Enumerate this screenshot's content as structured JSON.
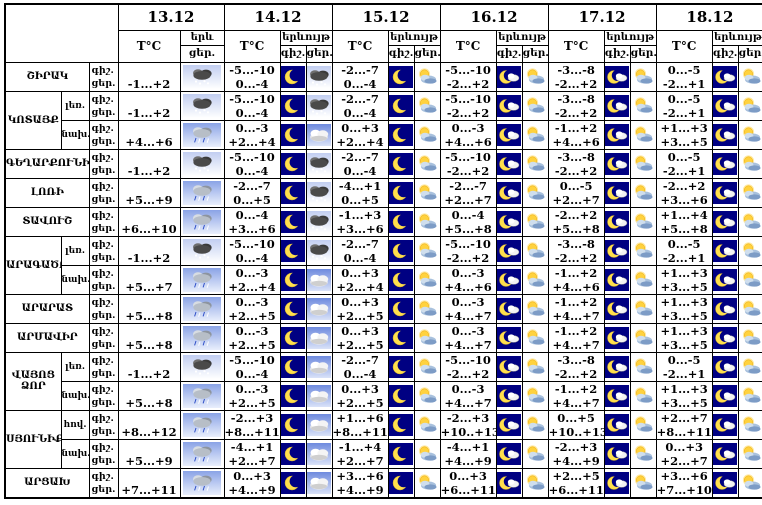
{
  "table": {
    "dates": [
      "13.12",
      "14.12",
      "15.12",
      "16.12",
      "17.12",
      "18.12"
    ],
    "headers": {
      "temp": "T°C",
      "phenomenon": "երևույթ",
      "phenomenon_short": "երև",
      "night": "գիշ.",
      "day": "ցեր."
    },
    "row_time_labels": {
      "night": "գիշ.",
      "day": "ցեր."
    },
    "icon_legend": {
      "moon": "clear night - yellow crescent moon on dark blue",
      "moon-cloud": "partly cloudy night - crescent moon with small cloud on dark blue",
      "snow-cloud": "dark storm cloud with snowfall",
      "rain-cloud": "grey cloud with rain on blue sky",
      "cloud": "overcast white cloud on blue sky",
      "sun-cloud": "partly cloudy day - sun behind blue-grey cloud"
    },
    "colors": {
      "night_bg": "#000082",
      "moon_yellow": "#ffdf4d",
      "border": "#000000",
      "page_bg": "#ffffff"
    },
    "rows": [
      {
        "region": "ՇԻՐԱԿ",
        "span": 1,
        "sub": null,
        "cells": [
          {
            "day": "-1...+2",
            "day_icon": "snow-cloud"
          },
          {
            "night": "-5...-10",
            "day": "0...-4",
            "night_icon": "moon",
            "day_icon": "snow-cloud"
          },
          {
            "night": "-2...-7",
            "day": "0...-4",
            "night_icon": "moon",
            "day_icon": "sun-cloud"
          },
          {
            "night": "-5...-10",
            "day": "-2...+2",
            "night_icon": "moon-cloud",
            "day_icon": "sun-cloud"
          },
          {
            "night": "-3...-8",
            "day": "-2...+2",
            "night_icon": "moon-cloud",
            "day_icon": "sun-cloud"
          },
          {
            "night": "0...-5",
            "day": "-2...+1",
            "night_icon": "moon-cloud",
            "day_icon": "sun-cloud"
          }
        ]
      },
      {
        "region": "ԿՈՏԱՅՔ",
        "span": 2,
        "sub": "լեռ.",
        "cells": [
          {
            "day": "-1...+2",
            "day_icon": "snow-cloud"
          },
          {
            "night": "-5...-10",
            "day": "0...-4",
            "night_icon": "moon",
            "day_icon": "snow-cloud"
          },
          {
            "night": "-2...-7",
            "day": "0...-4",
            "night_icon": "moon",
            "day_icon": "sun-cloud"
          },
          {
            "night": "-5...-10",
            "day": "-2...+2",
            "night_icon": "moon-cloud",
            "day_icon": "sun-cloud"
          },
          {
            "night": "-3...-8",
            "day": "-2...+2",
            "night_icon": "moon-cloud",
            "day_icon": "sun-cloud"
          },
          {
            "night": "0...-5",
            "day": "-2...+1",
            "night_icon": "moon-cloud",
            "day_icon": "sun-cloud"
          }
        ]
      },
      {
        "sub": "նախ.",
        "cells": [
          {
            "day": "+4...+6",
            "day_icon": "rain-cloud"
          },
          {
            "night": "0...-3",
            "day": "+2...+4",
            "night_icon": "moon",
            "day_icon": "cloud"
          },
          {
            "night": "0...+3",
            "day": "+2...+4",
            "night_icon": "moon",
            "day_icon": "sun-cloud"
          },
          {
            "night": "0...-3",
            "day": "+4...+6",
            "night_icon": "moon-cloud",
            "day_icon": "sun-cloud"
          },
          {
            "night": "-1...+2",
            "day": "+4...+6",
            "night_icon": "moon-cloud",
            "day_icon": "sun-cloud"
          },
          {
            "night": "+1...+3",
            "day": "+3...+5",
            "night_icon": "moon-cloud",
            "day_icon": "sun-cloud"
          }
        ]
      },
      {
        "region": "ԳԵՂԱՐՔՈՒՆԻՔ",
        "span": 1,
        "sub": null,
        "cells": [
          {
            "day": "-1...+2",
            "day_icon": "snow-cloud"
          },
          {
            "night": "-5...-10",
            "day": "0...-4",
            "night_icon": "moon",
            "day_icon": "snow-cloud"
          },
          {
            "night": "-2...-7",
            "day": "0...-4",
            "night_icon": "moon",
            "day_icon": "sun-cloud"
          },
          {
            "night": "-5...-10",
            "day": "-2...+2",
            "night_icon": "moon-cloud",
            "day_icon": "sun-cloud"
          },
          {
            "night": "-3...-8",
            "day": "-2...+2",
            "night_icon": "moon-cloud",
            "day_icon": "sun-cloud"
          },
          {
            "night": "0...-5",
            "day": "-2...+1",
            "night_icon": "moon-cloud",
            "day_icon": "sun-cloud"
          }
        ]
      },
      {
        "region": "ԼՈՌԻ",
        "span": 1,
        "sub": null,
        "cells": [
          {
            "day": "+5...+9",
            "day_icon": "rain-cloud"
          },
          {
            "night": "-2...-7",
            "day": "0...+5",
            "night_icon": "moon",
            "day_icon": "snow-cloud"
          },
          {
            "night": "-4...+1",
            "day": "0...+5",
            "night_icon": "moon",
            "day_icon": "sun-cloud"
          },
          {
            "night": "-2...-7",
            "day": "+2...+7",
            "night_icon": "moon-cloud",
            "day_icon": "sun-cloud"
          },
          {
            "night": "0...-5",
            "day": "+2...+7",
            "night_icon": "moon-cloud",
            "day_icon": "sun-cloud"
          },
          {
            "night": "-2...+2",
            "day": "+3...+6",
            "night_icon": "moon-cloud",
            "day_icon": "sun-cloud"
          }
        ]
      },
      {
        "region": "ՏԱՎՈՒՇ",
        "span": 1,
        "sub": null,
        "cells": [
          {
            "day": "+6...+10",
            "day_icon": "rain-cloud"
          },
          {
            "night": "0...-4",
            "day": "+3...+6",
            "night_icon": "moon",
            "day_icon": "snow-cloud"
          },
          {
            "night": "-1...+3",
            "day": "+3...+6",
            "night_icon": "moon",
            "day_icon": "sun-cloud"
          },
          {
            "night": "0...-4",
            "day": "+5...+8",
            "night_icon": "moon-cloud",
            "day_icon": "sun-cloud"
          },
          {
            "night": "-2...+2",
            "day": "+5...+8",
            "night_icon": "moon-cloud",
            "day_icon": "sun-cloud"
          },
          {
            "night": "+1...+4",
            "day": "+5...+8",
            "night_icon": "moon-cloud",
            "day_icon": "sun-cloud"
          }
        ]
      },
      {
        "region": "ԱՐԱԳԱԾՈՏՆ",
        "span": 2,
        "sub": "լեռ.",
        "cells": [
          {
            "day": "-1...+2",
            "day_icon": "snow-cloud"
          },
          {
            "night": "-5...-10",
            "day": "0...-4",
            "night_icon": "moon",
            "day_icon": "snow-cloud"
          },
          {
            "night": "-2...-7",
            "day": "0...-4",
            "night_icon": "moon",
            "day_icon": "sun-cloud"
          },
          {
            "night": "-5...-10",
            "day": "-2...+2",
            "night_icon": "moon-cloud",
            "day_icon": "sun-cloud"
          },
          {
            "night": "-3...-8",
            "day": "-2...+2",
            "night_icon": "moon-cloud",
            "day_icon": "sun-cloud"
          },
          {
            "night": "0...-5",
            "day": "-2...+1",
            "night_icon": "moon-cloud",
            "day_icon": "sun-cloud"
          }
        ]
      },
      {
        "sub": "նախ.",
        "cells": [
          {
            "day": "+5...+7",
            "day_icon": "rain-cloud"
          },
          {
            "night": "0...-3",
            "day": "+2...+4",
            "night_icon": "moon",
            "day_icon": "cloud"
          },
          {
            "night": "0...+3",
            "day": "+2...+4",
            "night_icon": "moon",
            "day_icon": "sun-cloud"
          },
          {
            "night": "0...-3",
            "day": "+4...+6",
            "night_icon": "moon-cloud",
            "day_icon": "sun-cloud"
          },
          {
            "night": "-1...+2",
            "day": "+4...+6",
            "night_icon": "moon-cloud",
            "day_icon": "sun-cloud"
          },
          {
            "night": "+1...+3",
            "day": "+3...+5",
            "night_icon": "moon-cloud",
            "day_icon": "sun-cloud"
          }
        ]
      },
      {
        "region": "ԱՐԱՐԱՏ",
        "span": 1,
        "sub": null,
        "cells": [
          {
            "day": "+5...+8",
            "day_icon": "rain-cloud"
          },
          {
            "night": "0...-3",
            "day": "+2...+5",
            "night_icon": "moon",
            "day_icon": "cloud"
          },
          {
            "night": "0...+3",
            "day": "+2...+5",
            "night_icon": "moon",
            "day_icon": "sun-cloud"
          },
          {
            "night": "0...-3",
            "day": "+4...+7",
            "night_icon": "moon-cloud",
            "day_icon": "sun-cloud"
          },
          {
            "night": "-1...+2",
            "day": "+4...+7",
            "night_icon": "moon-cloud",
            "day_icon": "sun-cloud"
          },
          {
            "night": "+1...+3",
            "day": "+3...+5",
            "night_icon": "moon-cloud",
            "day_icon": "sun-cloud"
          }
        ]
      },
      {
        "region": "ԱՐՄԱՎԻՐ",
        "span": 1,
        "sub": null,
        "cells": [
          {
            "day": "+5...+8",
            "day_icon": "rain-cloud"
          },
          {
            "night": "0...-3",
            "day": "+2...+5",
            "night_icon": "moon",
            "day_icon": "cloud"
          },
          {
            "night": "0...+3",
            "day": "+2...+5",
            "night_icon": "moon",
            "day_icon": "sun-cloud"
          },
          {
            "night": "0...-3",
            "day": "+4...+7",
            "night_icon": "moon-cloud",
            "day_icon": "sun-cloud"
          },
          {
            "night": "-1...+2",
            "day": "+4...+7",
            "night_icon": "moon-cloud",
            "day_icon": "sun-cloud"
          },
          {
            "night": "+1...+3",
            "day": "+3...+5",
            "night_icon": "moon-cloud",
            "day_icon": "sun-cloud"
          }
        ]
      },
      {
        "region": "ՎԱՅՈՑ ՁՈՐ",
        "span": 2,
        "sub": "լեռ.",
        "cells": [
          {
            "day": "-1...+2",
            "day_icon": "snow-cloud"
          },
          {
            "night": "-5...-10",
            "day": "0...-4",
            "night_icon": "moon",
            "day_icon": "cloud"
          },
          {
            "night": "-2...-7",
            "day": "0...-4",
            "night_icon": "moon",
            "day_icon": "sun-cloud"
          },
          {
            "night": "-5...-10",
            "day": "-2...+2",
            "night_icon": "moon-cloud",
            "day_icon": "sun-cloud"
          },
          {
            "night": "-3...-8",
            "day": "-2...+2",
            "night_icon": "moon-cloud",
            "day_icon": "sun-cloud"
          },
          {
            "night": "0...-5",
            "day": "-2...+1",
            "night_icon": "moon-cloud",
            "day_icon": "sun-cloud"
          }
        ]
      },
      {
        "sub": "նախ.",
        "cells": [
          {
            "day": "+5...+8",
            "day_icon": "rain-cloud"
          },
          {
            "night": "0...-3",
            "day": "+2...+5",
            "night_icon": "moon",
            "day_icon": "cloud"
          },
          {
            "night": "0...+3",
            "day": "+2...+5",
            "night_icon": "moon",
            "day_icon": "sun-cloud"
          },
          {
            "night": "0...-3",
            "day": "+4...+7",
            "night_icon": "moon-cloud",
            "day_icon": "sun-cloud"
          },
          {
            "night": "-1...+2",
            "day": "+4...+7",
            "night_icon": "moon-cloud",
            "day_icon": "sun-cloud"
          },
          {
            "night": "+1...+3",
            "day": "+3...+5",
            "night_icon": "moon-cloud",
            "day_icon": "sun-cloud"
          }
        ]
      },
      {
        "region": "ՍՅՈՒՆԻՔ",
        "span": 2,
        "sub": "հով.",
        "cells": [
          {
            "day": "+8...+12",
            "day_icon": "rain-cloud"
          },
          {
            "night": "-2...+3",
            "day": "+8...+11",
            "night_icon": "moon",
            "day_icon": "cloud"
          },
          {
            "night": "+1...+6",
            "day": "+8...+11",
            "night_icon": "moon",
            "day_icon": "sun-cloud"
          },
          {
            "night": "-2...+3",
            "day": "+10..+13",
            "night_icon": "moon-cloud",
            "day_icon": "sun-cloud"
          },
          {
            "night": "0...+5",
            "day": "+10..+13",
            "night_icon": "moon-cloud",
            "day_icon": "sun-cloud"
          },
          {
            "night": "+2...+7",
            "day": "+8...+11",
            "night_icon": "moon-cloud",
            "day_icon": "sun-cloud"
          }
        ]
      },
      {
        "sub": "նախ.",
        "cells": [
          {
            "day": "+5...+9",
            "day_icon": "rain-cloud"
          },
          {
            "night": "-4...+1",
            "day": "+2...+7",
            "night_icon": "moon",
            "day_icon": "cloud"
          },
          {
            "night": "-1...+4",
            "day": "+2...+7",
            "night_icon": "moon",
            "day_icon": "sun-cloud"
          },
          {
            "night": "-4...+1",
            "day": "+4...+9",
            "night_icon": "moon-cloud",
            "day_icon": "sun-cloud"
          },
          {
            "night": "-2...+3",
            "day": "+4...+9",
            "night_icon": "moon-cloud",
            "day_icon": "sun-cloud"
          },
          {
            "night": "0...+3",
            "day": "+2...+7",
            "night_icon": "moon-cloud",
            "day_icon": "sun-cloud"
          }
        ]
      },
      {
        "region": "ԱՐՑԱԽ",
        "span": 1,
        "sub": null,
        "cells": [
          {
            "day": "+7...+11",
            "day_icon": "rain-cloud"
          },
          {
            "night": "0...+3",
            "day": "+4...+9",
            "night_icon": "moon",
            "day_icon": "cloud"
          },
          {
            "night": "+3...+6",
            "day": "+4...+9",
            "night_icon": "moon",
            "day_icon": "sun-cloud"
          },
          {
            "night": "0...+3",
            "day": "+6...+11",
            "night_icon": "moon-cloud",
            "day_icon": "sun-cloud"
          },
          {
            "night": "+2...+5",
            "day": "+6...+11",
            "night_icon": "moon-cloud",
            "day_icon": "sun-cloud"
          },
          {
            "night": "+3...+6",
            "day": "+7...+10",
            "night_icon": "moon-cloud",
            "day_icon": "sun-cloud"
          }
        ]
      }
    ]
  }
}
